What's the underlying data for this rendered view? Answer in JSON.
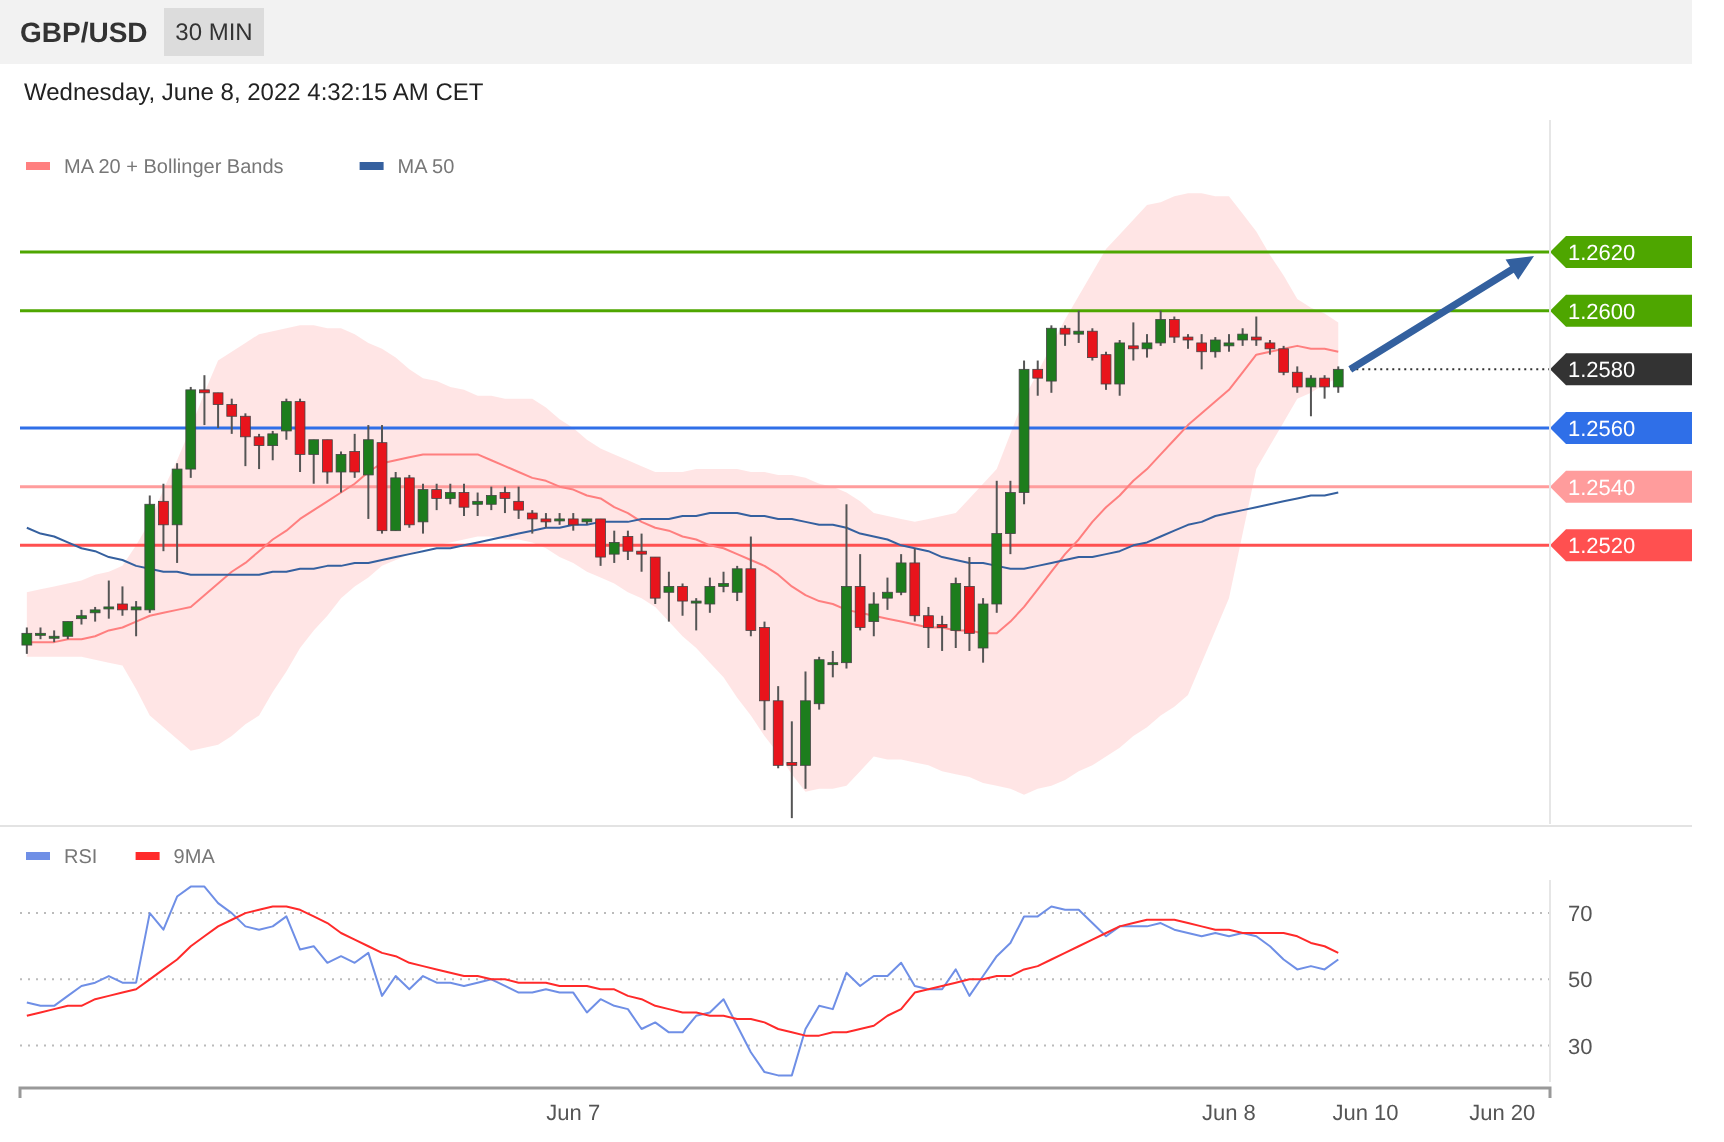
{
  "chart_data": [
    {
      "type": "candlestick",
      "title": "GBP/USD",
      "subtitle": "30 MIN",
      "annotations": [
        "Wednesday, June 8, 2022 4:32:15 AM CET"
      ],
      "categories": [
        null,
        null,
        null,
        null,
        null,
        null,
        null,
        null,
        null,
        null,
        null,
        null,
        null,
        null,
        null,
        null,
        null,
        null,
        null,
        null,
        null,
        null,
        null,
        null,
        null,
        null,
        null,
        null,
        null,
        null,
        null,
        null,
        null,
        null,
        null,
        null,
        null,
        null,
        null,
        null,
        null,
        null,
        null,
        null,
        null,
        null,
        null,
        null,
        null,
        null,
        null,
        null,
        null,
        null,
        null,
        null,
        null,
        null,
        null,
        null,
        null,
        null,
        null,
        null,
        null,
        null,
        null,
        null,
        null,
        null,
        null,
        null,
        null,
        null,
        null,
        null,
        null,
        null,
        null,
        null,
        null,
        null,
        null,
        null,
        null,
        null,
        null,
        null,
        null,
        null,
        null,
        null,
        null,
        null,
        null,
        null,
        null,
        null,
        null,
        null,
        null,
        null,
        null,
        null,
        null,
        null,
        null,
        null,
        null,
        null,
        null,
        null
      ],
      "ohlc": [
        [
          1.2486,
          1.2492,
          1.2483,
          1.249
        ],
        [
          1.249,
          1.2492,
          1.2488,
          1.249
        ],
        [
          1.2489,
          1.2491,
          1.2487,
          1.2489
        ],
        [
          1.2489,
          1.2494,
          1.2488,
          1.2494
        ],
        [
          1.2495,
          1.2498,
          1.2493,
          1.2496
        ],
        [
          1.2497,
          1.2499,
          1.2494,
          1.2498
        ],
        [
          1.2499,
          1.2508,
          1.2495,
          1.2499
        ],
        [
          1.25,
          1.2506,
          1.2496,
          1.2498
        ],
        [
          1.2498,
          1.2501,
          1.2489,
          1.2499
        ],
        [
          1.2498,
          1.2537,
          1.2497,
          1.2534
        ],
        [
          1.2535,
          1.2541,
          1.2518,
          1.2527
        ],
        [
          1.2527,
          1.2548,
          1.2514,
          1.2546
        ],
        [
          1.2546,
          1.2574,
          1.2543,
          1.2573
        ],
        [
          1.2573,
          1.2578,
          1.2561,
          1.2572
        ],
        [
          1.2572,
          1.2572,
          1.256,
          1.2568
        ],
        [
          1.2568,
          1.257,
          1.2558,
          1.2564
        ],
        [
          1.2564,
          1.2565,
          1.2547,
          1.2557
        ],
        [
          1.2557,
          1.2558,
          1.2546,
          1.2554
        ],
        [
          1.2554,
          1.2559,
          1.2549,
          1.2558
        ],
        [
          1.2559,
          1.257,
          1.2556,
          1.2569
        ],
        [
          1.2569,
          1.257,
          1.2545,
          1.2551
        ],
        [
          1.2551,
          1.2556,
          1.2541,
          1.2556
        ],
        [
          1.2556,
          1.2556,
          1.2541,
          1.2545
        ],
        [
          1.2545,
          1.2552,
          1.2538,
          1.2551
        ],
        [
          1.2552,
          1.2558,
          1.2543,
          1.2545
        ],
        [
          1.2544,
          1.2561,
          1.2529,
          1.2556
        ],
        [
          1.2555,
          1.2561,
          1.2524,
          1.2525
        ],
        [
          1.2525,
          1.2545,
          1.2525,
          1.2543
        ],
        [
          1.2543,
          1.2544,
          1.2526,
          1.2527
        ],
        [
          1.2528,
          1.2541,
          1.2524,
          1.2539
        ],
        [
          1.2539,
          1.2541,
          1.2532,
          1.2536
        ],
        [
          1.2536,
          1.2541,
          1.2534,
          1.2538
        ],
        [
          1.2538,
          1.2541,
          1.253,
          1.2533
        ],
        [
          1.2534,
          1.2538,
          1.253,
          1.2535
        ],
        [
          1.2534,
          1.254,
          1.2532,
          1.2537
        ],
        [
          1.2538,
          1.254,
          1.2531,
          1.2536
        ],
        [
          1.2535,
          1.254,
          1.2529,
          1.2532
        ],
        [
          1.2531,
          1.2532,
          1.2524,
          1.2529
        ],
        [
          1.2529,
          1.2531,
          1.2526,
          1.2528
        ],
        [
          1.2529,
          1.2531,
          1.2527,
          1.2529
        ],
        [
          1.2529,
          1.2531,
          1.2525,
          1.2527
        ],
        [
          1.2528,
          1.2529,
          1.2527,
          1.2529
        ],
        [
          1.2529,
          1.2529,
          1.2513,
          1.2516
        ],
        [
          1.2517,
          1.2525,
          1.2514,
          1.2521
        ],
        [
          1.2523,
          1.2525,
          1.2515,
          1.2518
        ],
        [
          1.2518,
          1.2524,
          1.2511,
          1.2517
        ],
        [
          1.2516,
          1.2516,
          1.25,
          1.2502
        ],
        [
          1.2504,
          1.2511,
          1.2494,
          1.2506
        ],
        [
          1.2506,
          1.2507,
          1.2496,
          1.2501
        ],
        [
          1.2501,
          1.2502,
          1.2491,
          1.2501
        ],
        [
          1.25,
          1.2509,
          1.2497,
          1.2506
        ],
        [
          1.2506,
          1.2511,
          1.2504,
          1.2507
        ],
        [
          1.2504,
          1.2513,
          1.2501,
          1.2512
        ],
        [
          1.2512,
          1.2523,
          1.2489,
          1.2491
        ],
        [
          1.2492,
          1.2494,
          1.2457,
          1.2467
        ],
        [
          1.2467,
          1.2472,
          1.2444,
          1.2445
        ],
        [
          1.2446,
          1.246,
          1.2427,
          1.2445
        ],
        [
          1.2445,
          1.2477,
          1.2437,
          1.2467
        ],
        [
          1.2466,
          1.2482,
          1.2464,
          1.2481
        ],
        [
          1.248,
          1.2484,
          1.2475,
          1.248
        ],
        [
          1.248,
          1.2534,
          1.2478,
          1.2506
        ],
        [
          1.2506,
          1.2517,
          1.2491,
          1.2492
        ],
        [
          1.2494,
          1.2504,
          1.2489,
          1.25
        ],
        [
          1.2502,
          1.2509,
          1.2498,
          1.2504
        ],
        [
          1.2504,
          1.2517,
          1.2503,
          1.2514
        ],
        [
          1.2514,
          1.2519,
          1.2494,
          1.2496
        ],
        [
          1.2496,
          1.2499,
          1.2485,
          1.2492
        ],
        [
          1.2493,
          1.2496,
          1.2484,
          1.2492
        ],
        [
          1.2491,
          1.2509,
          1.2485,
          1.2507
        ],
        [
          1.2506,
          1.2516,
          1.2484,
          1.249
        ],
        [
          1.2485,
          1.2502,
          1.248,
          1.25
        ],
        [
          1.25,
          1.2542,
          1.2497,
          1.2524
        ],
        [
          1.2524,
          1.2542,
          1.2517,
          1.2538
        ],
        [
          1.2538,
          1.2583,
          1.2534,
          1.258
        ],
        [
          1.258,
          1.2583,
          1.2571,
          1.2577
        ],
        [
          1.2576,
          1.2595,
          1.2572,
          1.2594
        ],
        [
          1.2594,
          1.2595,
          1.2588,
          1.2592
        ],
        [
          1.2592,
          1.26,
          1.2589,
          1.2593
        ],
        [
          1.2593,
          1.2594,
          1.2583,
          1.2584
        ],
        [
          1.2585,
          1.2586,
          1.2573,
          1.2575
        ],
        [
          1.2575,
          1.259,
          1.2571,
          1.2589
        ],
        [
          1.2588,
          1.2596,
          1.2583,
          1.2587
        ],
        [
          1.2587,
          1.2592,
          1.2584,
          1.2589
        ],
        [
          1.2589,
          1.26,
          1.2588,
          1.2597
        ],
        [
          1.2597,
          1.2598,
          1.2589,
          1.2591
        ],
        [
          1.2591,
          1.2592,
          1.2587,
          1.259
        ],
        [
          1.2589,
          1.2592,
          1.258,
          1.2586
        ],
        [
          1.2586,
          1.2591,
          1.2584,
          1.259
        ],
        [
          1.2588,
          1.2592,
          1.2586,
          1.2589
        ],
        [
          1.259,
          1.2594,
          1.2588,
          1.2592
        ],
        [
          1.2591,
          1.2598,
          1.2588,
          1.259
        ],
        [
          1.2589,
          1.259,
          1.2585,
          1.2587
        ],
        [
          1.2587,
          1.2588,
          1.2578,
          1.2579
        ],
        [
          1.2579,
          1.2581,
          1.2572,
          1.2574
        ],
        [
          1.2574,
          1.2578,
          1.2564,
          1.2577
        ],
        [
          1.2577,
          1.2578,
          1.257,
          1.2574
        ],
        [
          1.2574,
          1.2581,
          1.2572,
          1.258
        ],
        null,
        null,
        null,
        null,
        null,
        null,
        null,
        null,
        null,
        null,
        null,
        null,
        null,
        null,
        null
      ],
      "ylim": [
        1.2425,
        1.2665
      ],
      "yticks": [
        {
          "value": 1.262,
          "label": "1.2620"
        },
        {
          "value": 1.26,
          "label": "1.2600"
        },
        {
          "value": 1.258,
          "label": "1.2580"
        },
        {
          "value": 1.256,
          "label": "1.2560"
        },
        {
          "value": 1.254,
          "label": "1.2540"
        },
        {
          "value": 1.252,
          "label": "1.2520"
        }
      ],
      "tick_labels": "y",
      "legend": "top left",
      "series": [
        {
          "name": "MA 20 + Bollinger Bands",
          "type": "line",
          "color": "#ff7f7f",
          "values": [
            1.2487,
            1.2487,
            1.2487,
            1.2488,
            1.2488,
            1.2489,
            1.2491,
            1.2492,
            1.2494,
            1.2496,
            1.2497,
            1.2498,
            1.2499,
            1.2503,
            1.2507,
            1.2511,
            1.2514,
            1.2518,
            1.2522,
            1.2525,
            1.2529,
            1.2532,
            1.2535,
            1.2538,
            1.2541,
            1.2545,
            1.2548,
            1.2549,
            1.255,
            1.2551,
            1.2551,
            1.2551,
            1.2551,
            1.2551,
            1.2549,
            1.2547,
            1.2545,
            1.2543,
            1.2542,
            1.254,
            1.2539,
            1.2537,
            1.2536,
            1.2533,
            1.2531,
            1.2528,
            1.2526,
            1.2525,
            1.2523,
            1.2522,
            1.252,
            1.2519,
            1.2517,
            1.2515,
            1.2513,
            1.251,
            1.2506,
            1.2503,
            1.2501,
            1.25,
            1.2498,
            1.2497,
            1.2496,
            1.2495,
            1.2494,
            1.2493,
            1.2492,
            1.2492,
            1.2491,
            1.2491,
            1.249,
            1.249,
            1.2494,
            1.2499,
            1.2505,
            1.2511,
            1.2517,
            1.2522,
            1.2528,
            1.2533,
            1.2537,
            1.2542,
            1.2546,
            1.2551,
            1.2556,
            1.2561,
            1.2565,
            1.2569,
            1.2573,
            1.2579,
            1.2585,
            1.2586,
            1.2587,
            1.2588,
            1.2587,
            1.2587,
            1.2586,
            null,
            null,
            null,
            null,
            null,
            null,
            null,
            null,
            null,
            null,
            null,
            null,
            null,
            null,
            null
          ],
          "lower": [
            1.2482,
            1.2482,
            1.2482,
            1.2482,
            1.2482,
            1.2481,
            1.248,
            1.2479,
            1.2471,
            1.2462,
            1.2458,
            1.2454,
            1.245,
            1.2451,
            1.2452,
            1.2455,
            1.2459,
            1.2462,
            1.247,
            1.2477,
            1.2485,
            1.2491,
            1.2496,
            1.2502,
            1.2506,
            1.2509,
            1.2513,
            1.2515,
            1.2517,
            1.2519,
            1.252,
            1.2521,
            1.2522,
            1.2523,
            1.2523,
            1.2522,
            1.2522,
            1.2521,
            1.2519,
            1.2516,
            1.2514,
            1.2511,
            1.2509,
            1.2507,
            1.2504,
            1.2502,
            1.2499,
            1.2494,
            1.2489,
            1.2485,
            1.248,
            1.2475,
            1.2468,
            1.2462,
            1.2455,
            1.2449,
            1.2442,
            1.2436,
            1.2437,
            1.2437,
            1.2438,
            1.2443,
            1.2448,
            1.2447,
            1.2447,
            1.2446,
            1.2445,
            1.2443,
            1.2442,
            1.2441,
            1.2439,
            1.2438,
            1.2437,
            1.2435,
            1.2437,
            1.2438,
            1.244,
            1.2443,
            1.2445,
            1.2448,
            1.2451,
            1.2455,
            1.2458,
            1.2462,
            1.2465,
            1.2469,
            1.248,
            1.2491,
            1.2502,
            1.2524,
            1.2546,
            1.2554,
            1.2562,
            1.257,
            1.2572,
            1.2575,
            1.2577,
            null,
            null,
            null,
            null,
            null,
            null,
            null,
            null,
            null,
            null,
            null,
            null,
            null,
            null,
            null
          ],
          "upper": [
            1.2504,
            1.2505,
            1.2506,
            1.2507,
            1.2508,
            1.251,
            1.2511,
            1.2513,
            1.252,
            1.2528,
            1.2539,
            1.2549,
            1.256,
            1.2572,
            1.2583,
            1.2586,
            1.2589,
            1.2592,
            1.2593,
            1.2594,
            1.2595,
            1.2595,
            1.2594,
            1.2594,
            1.2592,
            1.2589,
            1.2587,
            1.2584,
            1.258,
            1.2577,
            1.2576,
            1.2574,
            1.2573,
            1.2571,
            1.2571,
            1.257,
            1.257,
            1.257,
            1.2567,
            1.2563,
            1.256,
            1.2556,
            1.2553,
            1.2551,
            1.2549,
            1.2547,
            1.2545,
            1.2545,
            1.2545,
            1.2546,
            1.2546,
            1.2546,
            1.2546,
            1.2545,
            1.2545,
            1.2544,
            1.2544,
            1.2543,
            1.2541,
            1.254,
            1.2538,
            1.2535,
            1.2531,
            1.253,
            1.2529,
            1.2528,
            1.2529,
            1.253,
            1.2531,
            1.2536,
            1.2541,
            1.2546,
            1.2558,
            1.257,
            1.2579,
            1.2588,
            1.2597,
            1.2605,
            1.2613,
            1.2621,
            1.2626,
            1.2631,
            1.2636,
            1.2637,
            1.2639,
            1.264,
            1.264,
            1.2639,
            1.2639,
            1.2633,
            1.2627,
            1.2619,
            1.2612,
            1.2604,
            1.2601,
            1.2599,
            1.2596,
            null,
            null,
            null,
            null,
            null,
            null,
            null,
            null,
            null,
            null,
            null,
            null,
            null,
            null,
            null
          ]
        },
        {
          "name": "MA 50",
          "type": "line",
          "color": "#35609f",
          "values": [
            1.2526,
            1.2524,
            1.2523,
            1.2521,
            1.2519,
            1.2518,
            1.2516,
            1.2515,
            1.2513,
            1.2512,
            1.2511,
            1.2511,
            1.251,
            1.251,
            1.251,
            1.251,
            1.251,
            1.251,
            1.2511,
            1.2511,
            1.2512,
            1.2512,
            1.2513,
            1.2513,
            1.2514,
            1.2514,
            1.2515,
            1.2516,
            1.2517,
            1.2518,
            1.2519,
            1.2519,
            1.252,
            1.2521,
            1.2522,
            1.2523,
            1.2524,
            1.2525,
            1.2526,
            1.2526,
            1.2527,
            1.2527,
            1.2528,
            1.2528,
            1.2528,
            1.2529,
            1.2529,
            1.2529,
            1.253,
            1.253,
            1.2531,
            1.2531,
            1.2531,
            1.253,
            1.253,
            1.2529,
            1.2529,
            1.2528,
            1.2527,
            1.2527,
            1.2526,
            1.2524,
            1.2523,
            1.2522,
            1.252,
            1.2519,
            1.2518,
            1.2516,
            1.2515,
            1.2514,
            1.2514,
            1.2513,
            1.2512,
            1.2512,
            1.2513,
            1.2514,
            1.2515,
            1.2516,
            1.2516,
            1.2517,
            1.2518,
            1.252,
            1.2521,
            1.2523,
            1.2525,
            1.2527,
            1.2528,
            1.253,
            1.2531,
            1.2532,
            1.2533,
            1.2534,
            1.2535,
            1.2536,
            1.2537,
            1.2537,
            1.2538,
            null,
            null,
            null,
            null,
            null,
            null,
            null,
            null,
            null,
            null,
            null,
            null,
            null,
            null,
            null
          ]
        }
      ],
      "ref_lines": [
        {
          "axis": "y",
          "value": 1.262,
          "color": "#4ea600"
        },
        {
          "axis": "y",
          "value": 1.26,
          "color": "#4ea600"
        },
        {
          "axis": "y",
          "value": 1.258,
          "color": "#333333",
          "line_style": "dotted"
        },
        {
          "axis": "y",
          "value": 1.256,
          "color": "#2f6fe8"
        },
        {
          "axis": "y",
          "value": 1.254,
          "color": "#ff9c9c"
        },
        {
          "axis": "y",
          "value": 1.252,
          "color": "#ff5050"
        }
      ]
    },
    {
      "type": "line",
      "categories": [
        null,
        null,
        null,
        null,
        null,
        null,
        null,
        null,
        null,
        null,
        null,
        null,
        null,
        null,
        null,
        null,
        null,
        null,
        null,
        null,
        null,
        null,
        null,
        null,
        null,
        null,
        null,
        null,
        null,
        null,
        null,
        null,
        null,
        null,
        null,
        null,
        null,
        null,
        null,
        null,
        "Jun 7",
        null,
        null,
        null,
        null,
        null,
        null,
        null,
        null,
        null,
        null,
        null,
        null,
        null,
        null,
        null,
        null,
        null,
        null,
        null,
        null,
        null,
        null,
        null,
        null,
        null,
        null,
        null,
        null,
        null,
        null,
        null,
        null,
        null,
        null,
        null,
        null,
        null,
        null,
        null,
        null,
        null,
        null,
        null,
        null,
        null,
        null,
        null,
        "Jun 8",
        null,
        null,
        null,
        null,
        null,
        null,
        null,
        null,
        null,
        "Jun 10",
        null,
        null,
        null,
        null,
        null,
        null,
        null,
        null,
        null,
        "Jun 20",
        null,
        null,
        null
      ],
      "ylim": [
        19,
        80
      ],
      "yticks": [
        30,
        50,
        70
      ],
      "grid": "y",
      "legend": "top left",
      "series": [
        {
          "name": "RSI",
          "color": "#6f8fe6",
          "values": [
            43,
            42,
            42,
            45,
            48,
            49,
            51,
            49,
            49,
            70,
            65,
            75,
            78,
            78,
            73,
            70,
            66,
            65,
            66,
            69,
            59,
            60,
            55,
            57,
            55,
            58,
            45,
            51,
            47,
            51,
            49,
            49,
            48,
            49,
            50,
            48,
            46,
            46,
            47,
            46,
            46,
            40,
            44,
            42,
            41,
            35,
            37,
            34,
            34,
            39,
            40,
            44,
            36,
            28,
            22,
            21,
            21,
            35,
            42,
            41,
            52,
            48,
            51,
            51,
            55,
            48,
            47,
            47,
            53,
            45,
            51,
            57,
            61,
            69,
            69,
            72,
            71,
            71,
            67,
            63,
            66,
            66,
            66,
            67,
            65,
            64,
            63,
            64,
            63,
            64,
            63,
            60,
            56,
            53,
            54,
            53,
            56,
            null,
            null,
            null,
            null,
            null,
            null,
            null,
            null,
            null,
            null,
            null,
            null,
            null,
            null,
            null
          ]
        },
        {
          "name": "9MA",
          "color": "#ff2a2a",
          "values": [
            39,
            40,
            41,
            42,
            42,
            44,
            45,
            46,
            47,
            50,
            53,
            56,
            60,
            63,
            66,
            68,
            70,
            71,
            72,
            72,
            71,
            69,
            67,
            64,
            62,
            60,
            58,
            57,
            55,
            54,
            53,
            52,
            51,
            51,
            50,
            50,
            49,
            49,
            49,
            48,
            48,
            48,
            47,
            47,
            45,
            44,
            42,
            41,
            40,
            40,
            39,
            39,
            38,
            38,
            37,
            35,
            34,
            33,
            33,
            34,
            34,
            35,
            36,
            39,
            41,
            46,
            47,
            48,
            49,
            50,
            50,
            51,
            51,
            53,
            54,
            56,
            58,
            60,
            62,
            64,
            66,
            67,
            68,
            68,
            68,
            67,
            66,
            65,
            65,
            64,
            64,
            64,
            64,
            63,
            61,
            60,
            58,
            null,
            null,
            null,
            null,
            null,
            null,
            null,
            null,
            null,
            null,
            null,
            null,
            null,
            null,
            null
          ]
        }
      ]
    }
  ]
}
